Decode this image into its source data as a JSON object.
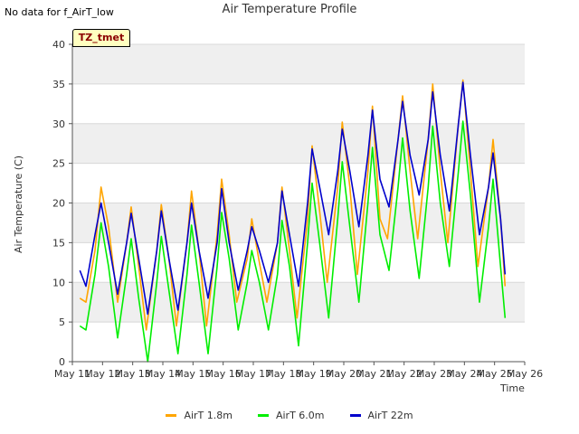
{
  "page": {
    "nodata_text": "No data for f_AirT_low",
    "tag_text": "TZ_tmet"
  },
  "chart_data": {
    "type": "line",
    "title": "Air Temperature Profile",
    "xlabel": "Time",
    "ylabel": "Air Temperature (C)",
    "ylim": [
      0,
      40
    ],
    "yticks": [
      0,
      5,
      10,
      15,
      20,
      25,
      30,
      35,
      40
    ],
    "xlim": [
      11,
      26
    ],
    "xticks": [
      11,
      12,
      13,
      14,
      15,
      16,
      17,
      18,
      19,
      20,
      21,
      22,
      23,
      24,
      25,
      26
    ],
    "xtick_labels": [
      "May 11",
      "May 12",
      "May 13",
      "May 14",
      "May 15",
      "May 16",
      "May 17",
      "May 18",
      "May 19",
      "May 20",
      "May 21",
      "May 22",
      "May 23",
      "May 24",
      "May 25",
      "May 26"
    ],
    "grid": true,
    "legend_position": "bottom",
    "x_unit": "day of May",
    "series": [
      {
        "name": "AirT 1.8m",
        "color": "#ffa500",
        "x": [
          11.25,
          11.45,
          11.75,
          11.95,
          12.2,
          12.5,
          12.8,
          12.95,
          13.2,
          13.45,
          13.8,
          13.95,
          14.2,
          14.45,
          14.8,
          14.95,
          15.2,
          15.45,
          15.8,
          15.95,
          16.2,
          16.45,
          16.8,
          16.95,
          17.2,
          17.45,
          17.8,
          17.95,
          18.2,
          18.45,
          18.8,
          18.95,
          19.2,
          19.45,
          19.8,
          19.95,
          20.2,
          20.45,
          20.8,
          20.95,
          21.2,
          21.45,
          21.8,
          21.95,
          22.2,
          22.45,
          22.8,
          22.95,
          23.2,
          23.45,
          23.8,
          23.95,
          24.2,
          24.45,
          24.8,
          24.95,
          25.2,
          25.35
        ],
        "y": [
          8,
          7.5,
          14,
          22,
          17,
          7.5,
          15,
          19.5,
          12,
          4,
          14,
          19.8,
          13,
          4.5,
          15,
          21.5,
          14,
          4.5,
          16,
          23,
          16,
          7.5,
          13,
          18,
          12.5,
          7.5,
          15,
          22,
          14,
          5.5,
          18,
          27.2,
          19,
          10,
          22,
          30.2,
          22,
          11,
          24,
          32.2,
          18,
          15.5,
          28,
          33.5,
          24,
          15.5,
          28,
          35,
          24,
          15,
          30,
          35.5,
          24,
          12,
          22,
          28,
          18,
          9.5
        ]
      },
      {
        "name": "AirT 6.0m",
        "color": "#00ee00",
        "x": [
          11.25,
          11.45,
          11.75,
          11.95,
          12.2,
          12.5,
          12.8,
          12.95,
          13.2,
          13.5,
          13.8,
          13.95,
          14.2,
          14.5,
          14.8,
          14.95,
          15.2,
          15.5,
          15.8,
          15.95,
          16.2,
          16.5,
          16.8,
          16.95,
          17.2,
          17.5,
          17.8,
          17.95,
          18.2,
          18.5,
          18.8,
          18.95,
          19.2,
          19.5,
          19.8,
          19.95,
          20.2,
          20.5,
          20.8,
          20.95,
          21.2,
          21.5,
          21.8,
          21.95,
          22.2,
          22.5,
          22.8,
          22.95,
          23.2,
          23.5,
          23.8,
          23.95,
          24.2,
          24.5,
          24.8,
          24.95,
          25.2,
          25.35
        ],
        "y": [
          4.5,
          4,
          11,
          17.5,
          12,
          3,
          11,
          15.5,
          8,
          0,
          10,
          15.8,
          9,
          1,
          11,
          17.2,
          10,
          1,
          12,
          18.8,
          13,
          4,
          10,
          14,
          10,
          4,
          11,
          17.8,
          12,
          2,
          15,
          22.5,
          15,
          5.5,
          18,
          25.2,
          17,
          7.5,
          20,
          27,
          16,
          11.5,
          22,
          28.2,
          19,
          10.5,
          22,
          29.7,
          20,
          12,
          24,
          30.3,
          21,
          7.5,
          17,
          23,
          12,
          5.5
        ]
      },
      {
        "name": "AirT 22m",
        "color": "#0000cc",
        "x": [
          11.25,
          11.45,
          11.75,
          11.95,
          12.2,
          12.5,
          12.8,
          12.95,
          13.2,
          13.5,
          13.8,
          13.95,
          14.2,
          14.5,
          14.8,
          14.95,
          15.2,
          15.5,
          15.8,
          15.95,
          16.2,
          16.5,
          16.8,
          16.95,
          17.2,
          17.5,
          17.8,
          17.95,
          18.2,
          18.5,
          18.8,
          18.95,
          19.2,
          19.5,
          19.8,
          19.95,
          20.2,
          20.5,
          20.8,
          20.95,
          21.2,
          21.5,
          21.8,
          21.95,
          22.2,
          22.5,
          22.8,
          22.95,
          23.2,
          23.5,
          23.8,
          23.95,
          24.2,
          24.5,
          24.8,
          24.95,
          25.2,
          25.35
        ],
        "y": [
          11.5,
          9.5,
          16,
          20,
          15,
          8.5,
          15,
          18.7,
          13,
          6,
          14,
          19,
          13,
          6.5,
          15,
          20,
          14,
          8,
          15,
          21.8,
          15,
          9,
          14,
          17,
          14,
          10,
          15,
          21.5,
          16,
          9.5,
          20,
          26.8,
          22,
          16,
          24,
          29.3,
          24,
          17,
          26,
          31.7,
          23,
          19.5,
          28,
          32.8,
          26,
          21,
          28,
          34,
          26,
          19,
          30,
          35.2,
          26,
          16,
          22,
          26.3,
          18,
          11
        ]
      }
    ]
  }
}
